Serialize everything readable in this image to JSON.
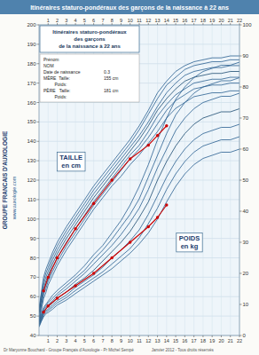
{
  "chart_data": {
    "type": "line",
    "title": "Itinéraires staturo-pondéraux des garçons de la naissance à 22 ans",
    "x": [
      0,
      0.25,
      0.5,
      0.75,
      1,
      1.5,
      2,
      3,
      4,
      5,
      6,
      7,
      8,
      9,
      10,
      11,
      12,
      13,
      14,
      15,
      16,
      17,
      18,
      19,
      20,
      21,
      22
    ],
    "xlim": [
      0,
      22
    ],
    "xticks": [
      1,
      2,
      3,
      4,
      5,
      6,
      7,
      8,
      9,
      10,
      11,
      12,
      13,
      14,
      15,
      16,
      17,
      18,
      19,
      20,
      21,
      22
    ],
    "ylim": [
      40,
      200
    ],
    "yticks": [
      40,
      50,
      60,
      70,
      80,
      90,
      100,
      110,
      120,
      130,
      140,
      150,
      160,
      170,
      180,
      190,
      200
    ],
    "y2lim": [
      0,
      100
    ],
    "y2ticks": [
      0,
      10,
      20,
      30,
      40,
      50,
      60,
      70,
      80,
      90,
      100
    ],
    "grid": true,
    "series": [
      {
        "color": "#2a6090",
        "values": [
          54,
          62,
          70,
          74,
          77,
          83,
          88,
          96,
          103,
          110,
          117,
          123,
          129,
          135,
          141,
          148,
          156,
          165,
          171,
          176,
          179,
          181,
          182,
          183,
          183,
          184,
          184
        ]
      },
      {
        "color": "#2a6090",
        "values": [
          53,
          61,
          68,
          72,
          75,
          81,
          86,
          94,
          101,
          108,
          115,
          121,
          127,
          133,
          139,
          146,
          154,
          162,
          169,
          173,
          177,
          179,
          180,
          181,
          181,
          182,
          182
        ]
      },
      {
        "color": "#2a6090",
        "values": [
          52,
          59,
          66,
          70,
          73,
          79,
          84,
          92,
          99,
          106,
          113,
          119,
          125,
          131,
          137,
          143,
          150,
          158,
          165,
          170,
          174,
          176,
          177,
          178,
          178,
          179,
          179
        ]
      },
      {
        "color": "#1a4a70",
        "values": [
          51,
          58,
          64,
          68,
          71,
          77,
          82,
          90,
          97,
          104,
          111,
          117,
          123,
          129,
          135,
          141,
          148,
          156,
          162,
          167,
          171,
          173,
          174,
          175,
          175,
          176,
          176
        ]
      },
      {
        "color": "#2a6090",
        "values": [
          49,
          56,
          62,
          66,
          69,
          75,
          80,
          88,
          95,
          102,
          109,
          115,
          121,
          127,
          133,
          138,
          145,
          153,
          159,
          164,
          167,
          170,
          171,
          172,
          172,
          173,
          173
        ]
      },
      {
        "color": "#2a6090",
        "values": [
          48,
          55,
          61,
          64,
          68,
          73,
          78,
          86,
          93,
          100,
          107,
          113,
          119,
          125,
          131,
          136,
          142,
          149,
          156,
          161,
          164,
          167,
          168,
          169,
          169,
          170,
          170
        ]
      },
      {
        "color": "#2a6090",
        "values": [
          47,
          53,
          59,
          62,
          66,
          71,
          76,
          84,
          91,
          98,
          105,
          111,
          117,
          122,
          128,
          133,
          139,
          145,
          152,
          157,
          160,
          163,
          164,
          165,
          165,
          166,
          166
        ]
      },
      {
        "color": "#2a6090",
        "axis": "y2",
        "values": [
          4.5,
          7,
          9,
          10,
          11,
          13,
          14.5,
          17,
          19.5,
          22.5,
          26,
          29,
          33,
          37,
          42,
          48,
          55,
          63,
          70,
          76,
          80,
          83,
          85,
          86,
          87,
          87,
          88
        ]
      },
      {
        "color": "#2a6090",
        "axis": "y2",
        "values": [
          4.2,
          6.5,
          8.5,
          9.5,
          10.5,
          12,
          13.5,
          16,
          18.5,
          21,
          24.5,
          27.5,
          31,
          35,
          39,
          44,
          51,
          58,
          65,
          71,
          75,
          78,
          80,
          81,
          82,
          82,
          83
        ]
      },
      {
        "color": "#2a6090",
        "axis": "y2",
        "values": [
          3.9,
          6,
          8,
          9,
          9.8,
          11.2,
          12.8,
          15,
          17.5,
          20,
          23,
          26,
          29,
          32.5,
          36.5,
          41,
          47,
          54,
          60,
          66,
          70,
          73,
          75,
          76,
          77,
          77,
          78
        ]
      },
      {
        "color": "#1a4a70",
        "axis": "y2",
        "values": [
          3.5,
          5.5,
          7.5,
          8.5,
          9.2,
          10.5,
          12,
          14,
          16.5,
          18.5,
          21,
          24,
          27,
          30,
          33.5,
          38,
          43,
          50,
          56,
          61,
          65,
          68,
          70,
          71,
          72,
          72,
          73
        ]
      },
      {
        "color": "#2a6090",
        "axis": "y2",
        "values": [
          3.2,
          5,
          7,
          8,
          8.5,
          9.8,
          11.2,
          13,
          15.5,
          17.5,
          19.5,
          22,
          25,
          27.5,
          30.5,
          34,
          39,
          45,
          51,
          56,
          60,
          63,
          65,
          66,
          67,
          67,
          68
        ]
      },
      {
        "color": "#2a6090",
        "axis": "y2",
        "values": [
          3.0,
          4.8,
          6.5,
          7.5,
          8,
          9.2,
          10.5,
          12.2,
          14.5,
          16.5,
          18.5,
          20.5,
          23,
          25.5,
          28,
          31.5,
          36,
          41,
          47,
          52,
          56,
          59,
          61,
          62,
          63,
          63,
          64
        ]
      },
      {
        "color": "#2a6090",
        "axis": "y2",
        "values": [
          2.7,
          4.5,
          6,
          7,
          7.4,
          8.5,
          9.8,
          11.4,
          13.5,
          15.5,
          17.5,
          19.5,
          21.5,
          24,
          26.5,
          29.5,
          33,
          37.5,
          43,
          48,
          52,
          55,
          57,
          58,
          59,
          59,
          60
        ]
      },
      {
        "color": "#cc0000",
        "marker": "circle",
        "x": [
          0.5,
          1,
          2,
          4,
          6,
          8,
          10,
          12,
          13,
          14
        ],
        "values": [
          63,
          70,
          80,
          95,
          108,
          120,
          131,
          138,
          143,
          148
        ]
      },
      {
        "color": "#cc0000",
        "marker": "circle",
        "axis": "y2",
        "x": [
          0.5,
          1,
          2,
          4,
          6,
          8,
          10,
          12,
          13,
          14
        ],
        "values": [
          7.5,
          9.5,
          12,
          16,
          20,
          25,
          30,
          35,
          38,
          42
        ]
      }
    ],
    "annotations": [
      {
        "text": "Itinéraires staturo-pondéraux\ndes garçons\nde la naissance à 22 ans"
      },
      {
        "text": "Prénom"
      },
      {
        "text": "NOM"
      },
      {
        "text": "Date de naissance"
      },
      {
        "text": "0.3"
      },
      {
        "text": "MÈRE  Taille:"
      },
      {
        "text": "155 cm"
      },
      {
        "text": "         Poids:"
      },
      {
        "text": "PÈRE   Taille:"
      },
      {
        "text": "181 cm"
      },
      {
        "text": "         Poids:"
      },
      {
        "text": "TAILLE\nen cm"
      },
      {
        "text": "POIDS\nen kg"
      },
      {
        "text": "GROUPE FRANCAIS D'AUXOLOGIE"
      },
      {
        "text": "www.auxologie.com"
      },
      {
        "text": "Dr Maryonne Bouchard - Groupe Français d'Auxologie - Pr Michel Sempé                Janvier 2012 - Tous droits réservés"
      }
    ]
  }
}
